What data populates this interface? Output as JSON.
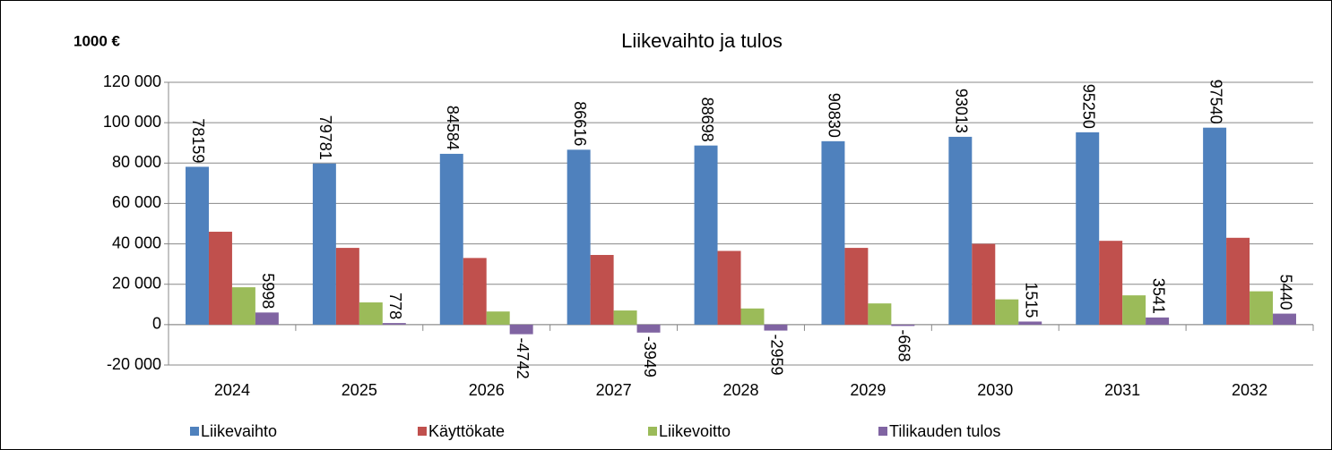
{
  "chart_data": {
    "type": "bar",
    "title": "Liikevaihto ja tulos",
    "unit_label": "1000 €",
    "categories": [
      "2024",
      "2025",
      "2026",
      "2027",
      "2028",
      "2029",
      "2030",
      "2031",
      "2032"
    ],
    "series": [
      {
        "name": "Liikevaihto",
        "color": "#4f81bd",
        "data_labels": true,
        "values": [
          78159,
          79781,
          84584,
          86616,
          88698,
          90830,
          93013,
          95250,
          97540
        ]
      },
      {
        "name": "Käyttökate",
        "color": "#c0504d",
        "data_labels": false,
        "values": [
          46000,
          38000,
          33000,
          34500,
          36500,
          38000,
          40000,
          41500,
          43000
        ]
      },
      {
        "name": "Liikevoitto",
        "color": "#9bbb59",
        "data_labels": false,
        "values": [
          18500,
          11000,
          6500,
          7000,
          8000,
          10500,
          12500,
          14500,
          16500
        ]
      },
      {
        "name": "Tilikauden tulos",
        "color": "#8064a2",
        "data_labels": true,
        "values": [
          5998,
          778,
          -4742,
          -3949,
          -2959,
          -668,
          1515,
          3541,
          5440
        ]
      }
    ],
    "ylim": [
      -20000,
      120000
    ],
    "yticks": [
      {
        "value": -20000,
        "label": "-20 000"
      },
      0,
      {
        "value": 20000,
        "label": "20 000"
      },
      {
        "value": 40000,
        "label": "40 000"
      },
      {
        "value": 60000,
        "label": "60 000"
      },
      {
        "value": 80000,
        "label": "80 000"
      },
      {
        "value": 100000,
        "label": "100 000"
      },
      {
        "value": 120000,
        "label": "120 000"
      }
    ],
    "grid": true,
    "legend": "bottom"
  }
}
